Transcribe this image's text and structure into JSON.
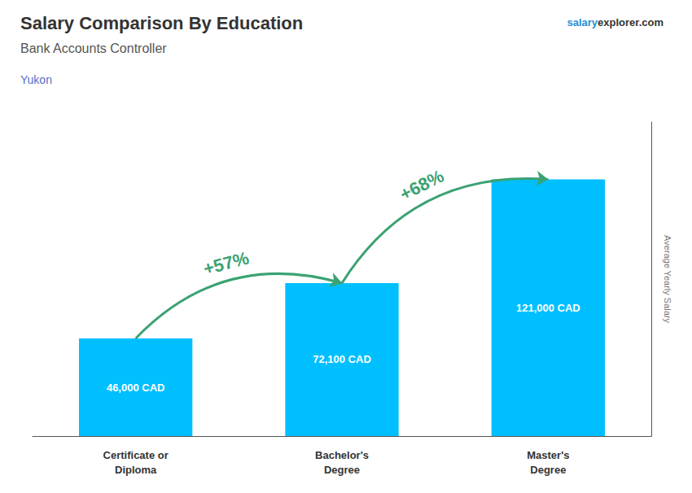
{
  "chart_data": {
    "type": "bar",
    "title": "Salary Comparison By Education",
    "subtitle": "Bank Accounts Controller",
    "location": "Yukon",
    "watermark": [
      "salary",
      "explorer.com"
    ],
    "ylabel": "Average Yearly Salary",
    "categories": [
      "Certificate or\nDiploma",
      "Bachelor's\nDegree",
      "Master's\nDegree"
    ],
    "values": [
      46000,
      72100,
      121000
    ],
    "value_labels": [
      "46,000 CAD",
      "72,100 CAD",
      "121,000 CAD"
    ],
    "data_labels": true,
    "color": "#00BFFF",
    "annotations": [
      "+57%",
      "+68%"
    ],
    "ylim": [
      0,
      148000
    ],
    "yticks": [],
    "tick_labels": "x",
    "grid": false
  }
}
